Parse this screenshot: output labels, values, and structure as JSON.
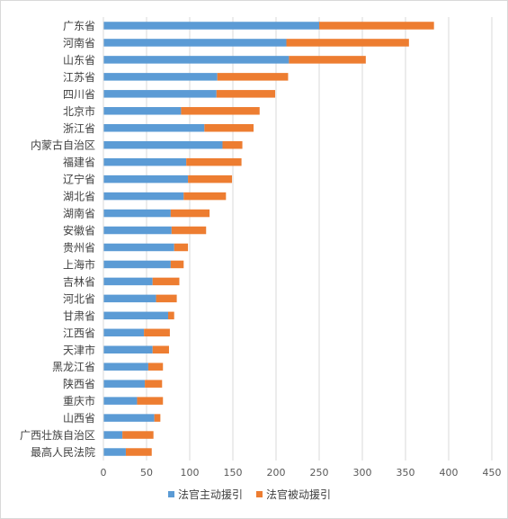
{
  "chart_data": {
    "type": "bar",
    "orientation": "horizontal",
    "stacked": true,
    "categories": [
      "广东省",
      "河南省",
      "山东省",
      "江苏省",
      "四川省",
      "北京市",
      "浙江省",
      "内蒙古自治区",
      "福建省",
      "辽宁省",
      "湖北省",
      "湖南省",
      "安徽省",
      "贵州省",
      "上海市",
      "吉林省",
      "河北省",
      "甘肃省",
      "江西省",
      "天津市",
      "黑龙江省",
      "陕西省",
      "重庆市",
      "山西省",
      "广西壮族自治区",
      "最高人民法院"
    ],
    "series": [
      {
        "name": "法官主动援引",
        "color": "#5B9BD5",
        "values": [
          250,
          212,
          215,
          132,
          131,
          90,
          117,
          138,
          96,
          98,
          93,
          78,
          79,
          82,
          78,
          57,
          61,
          75,
          47,
          57,
          52,
          48,
          39,
          59,
          22,
          26
        ]
      },
      {
        "name": "法官被动援引",
        "color": "#ED7D31",
        "values": [
          133,
          142,
          89,
          82,
          68,
          91,
          57,
          23,
          64,
          51,
          49,
          45,
          40,
          16,
          15,
          31,
          24,
          7,
          30,
          19,
          17,
          20,
          30,
          7,
          36,
          30
        ]
      }
    ],
    "xlim": [
      0,
      450
    ],
    "xticks": [
      0,
      50,
      100,
      150,
      200,
      250,
      300,
      350,
      400,
      450
    ],
    "xtick_labels": [
      "0",
      "50",
      "100",
      "150",
      "200",
      "250",
      "300",
      "350",
      "400",
      "450"
    ],
    "grid": true,
    "legend": "bottom",
    "axis_color": "#d9d9d9",
    "grid_color": "#d9d9d9"
  }
}
